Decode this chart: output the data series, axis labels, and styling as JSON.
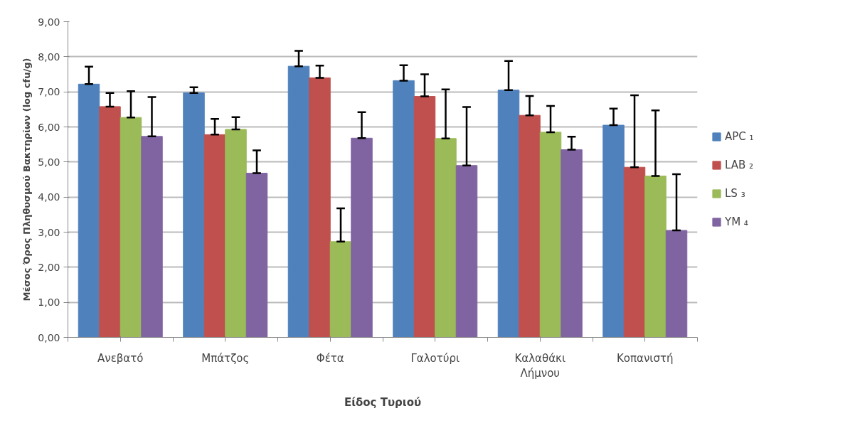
{
  "chart_data": {
    "type": "bar",
    "xlabel": "Είδος Τυριού",
    "ylabel": "Μέσος Όρος Πληθυσμού Βακτηρίων (log cfu/g)",
    "categories": [
      "Ανεβατό",
      "Μπάτζος",
      "Φέτα",
      "Γαλοτύρι",
      "Καλαθάκι Λήμνου",
      "Κοπανιστή"
    ],
    "series": [
      {
        "name": "APC ₁",
        "color": "#4f81bd",
        "values": [
          7.22,
          6.97,
          7.73,
          7.32,
          7.05,
          6.05
        ],
        "errors": [
          [
            7.22,
            7.72
          ],
          [
            6.97,
            7.13
          ],
          [
            7.73,
            8.17
          ],
          [
            7.32,
            7.76
          ],
          [
            7.05,
            7.88
          ],
          [
            6.05,
            6.52
          ]
        ]
      },
      {
        "name": "LAB ₂",
        "color": "#c0504d",
        "values": [
          6.58,
          5.78,
          7.4,
          6.87,
          6.33,
          4.85
        ],
        "errors": [
          [
            6.58,
            6.97
          ],
          [
            5.78,
            6.23
          ],
          [
            7.4,
            7.75
          ],
          [
            6.87,
            7.5
          ],
          [
            6.33,
            6.88
          ],
          [
            4.85,
            6.9
          ]
        ]
      },
      {
        "name": "LS ₃",
        "color": "#9bbb59",
        "values": [
          6.27,
          5.93,
          2.73,
          5.67,
          5.85,
          4.6
        ],
        "errors": [
          [
            6.27,
            7.02
          ],
          [
            5.93,
            6.28
          ],
          [
            2.73,
            3.68
          ],
          [
            5.67,
            7.07
          ],
          [
            5.85,
            6.6
          ],
          [
            4.6,
            6.47
          ]
        ]
      },
      {
        "name": "YM ₄",
        "color": "#8064a2",
        "values": [
          5.73,
          4.68,
          5.68,
          4.9,
          5.35,
          3.05
        ],
        "errors": [
          [
            5.73,
            6.85
          ],
          [
            4.68,
            5.33
          ],
          [
            5.68,
            6.42
          ],
          [
            4.9,
            6.57
          ],
          [
            5.35,
            5.72
          ],
          [
            3.05,
            4.65
          ]
        ]
      }
    ],
    "ylim": [
      0,
      9
    ],
    "yticks": [
      {
        "value": 0,
        "label": "0,00"
      },
      {
        "value": 1,
        "label": "1,00"
      },
      {
        "value": 2,
        "label": "2,00"
      },
      {
        "value": 3,
        "label": "3,00"
      },
      {
        "value": 4,
        "label": "4,00"
      },
      {
        "value": 5,
        "label": "5,00"
      },
      {
        "value": 6,
        "label": "6,00"
      },
      {
        "value": 7,
        "label": "7,00"
      },
      {
        "value": 8,
        "label": "8,00"
      },
      {
        "value": 9,
        "label": "9,00"
      }
    ],
    "grid": "y",
    "legend": "right"
  }
}
